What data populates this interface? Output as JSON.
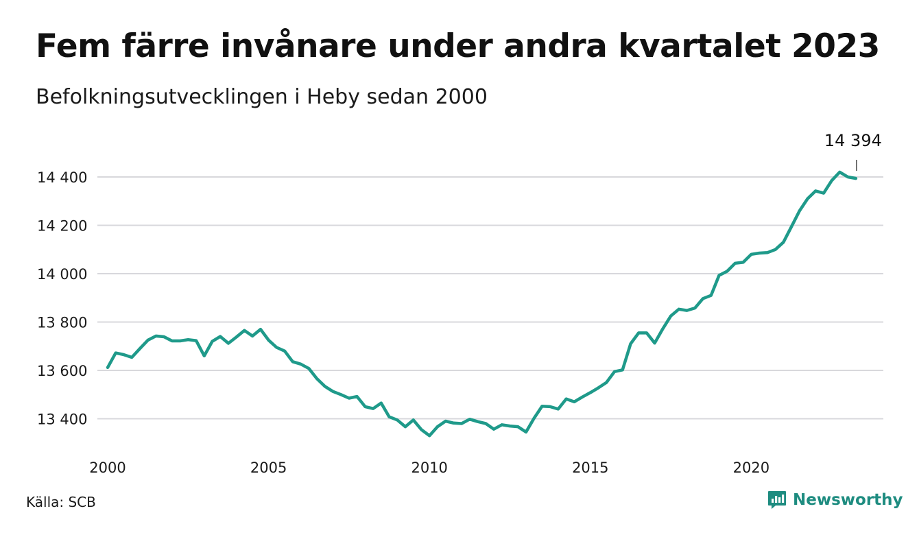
{
  "title": "Fem färre invånare under andra kvartalet 2023",
  "subtitle": "Befolkningsutvecklingen i Heby sedan 2000",
  "source": "Källa: SCB",
  "brand": "Newsworthy",
  "colors": {
    "line": "#1f9a8a",
    "grid": "#d8d8dc",
    "brand": "#1e8c80"
  },
  "chart_data": {
    "type": "line",
    "title": "Fem färre invånare under andra kvartalet 2023",
    "subtitle": "Befolkningsutvecklingen i Heby sedan 2000",
    "xlabel": "",
    "ylabel": "",
    "x_ticks": [
      2000,
      2005,
      2010,
      2015,
      2020
    ],
    "x_tick_labels": [
      "2000",
      "2005",
      "2010",
      "2015",
      "2020"
    ],
    "y_ticks": [
      13400,
      13600,
      13800,
      14000,
      14200,
      14400
    ],
    "y_tick_labels": [
      "13 400",
      "13 600",
      "13 800",
      "14 000",
      "14 200",
      "14 400"
    ],
    "xlim": [
      1999.9,
      2024.5
    ],
    "ylim": [
      13300,
      14460
    ],
    "grid": "horizontal",
    "last_value_label": "14 394",
    "series": [
      {
        "x": [
          2000.0,
          2000.25,
          2000.5,
          2000.75,
          2001.0,
          2001.25,
          2001.5,
          2001.75,
          2002.0,
          2002.25,
          2002.5,
          2002.75,
          2003.0,
          2003.25,
          2003.5,
          2003.75,
          2004.0,
          2004.25,
          2004.5,
          2004.75,
          2005.0,
          2005.25,
          2005.5,
          2005.75,
          2006.0,
          2006.25,
          2006.5,
          2006.75,
          2007.0,
          2007.25,
          2007.5,
          2007.75,
          2008.0,
          2008.25,
          2008.5,
          2008.75,
          2009.0,
          2009.25,
          2009.5,
          2009.75,
          2010.0,
          2010.25,
          2010.5,
          2010.75,
          2011.0,
          2011.25,
          2011.5,
          2011.75,
          2012.0,
          2012.25,
          2012.5,
          2012.75,
          2013.0,
          2013.25,
          2013.5,
          2013.75,
          2014.0,
          2014.25,
          2014.5,
          2014.75,
          2015.0,
          2015.25,
          2015.5,
          2015.75,
          2016.0,
          2016.25,
          2016.5,
          2016.75,
          2017.0,
          2017.25,
          2017.5,
          2017.75,
          2018.0,
          2018.25,
          2018.5,
          2018.75,
          2019.0,
          2019.25,
          2019.5,
          2019.75,
          2020.0,
          2020.25,
          2020.5,
          2020.75,
          2021.0,
          2021.25,
          2021.5,
          2021.75,
          2022.0,
          2022.25,
          2022.5,
          2022.75,
          2023.0,
          2023.25
        ],
        "values": [
          13612,
          13672,
          13665,
          13654,
          13690,
          13725,
          13742,
          13739,
          13722,
          13722,
          13727,
          13723,
          13660,
          13720,
          13740,
          13712,
          13738,
          13765,
          13742,
          13770,
          13725,
          13695,
          13680,
          13636,
          13626,
          13608,
          13566,
          13534,
          13513,
          13500,
          13485,
          13492,
          13450,
          13442,
          13465,
          13408,
          13395,
          13367,
          13395,
          13355,
          13330,
          13367,
          13390,
          13382,
          13380,
          13398,
          13388,
          13380,
          13357,
          13375,
          13370,
          13367,
          13345,
          13402,
          13452,
          13450,
          13440,
          13482,
          13470,
          13490,
          13508,
          13528,
          13550,
          13595,
          13602,
          13710,
          13755,
          13755,
          13713,
          13772,
          13825,
          13853,
          13848,
          13858,
          13897,
          13910,
          13993,
          14010,
          14043,
          14047,
          14080,
          14085,
          14087,
          14100,
          14130,
          14195,
          14260,
          14310,
          14342,
          14333,
          14385,
          14420,
          14400,
          14394
        ]
      }
    ]
  }
}
